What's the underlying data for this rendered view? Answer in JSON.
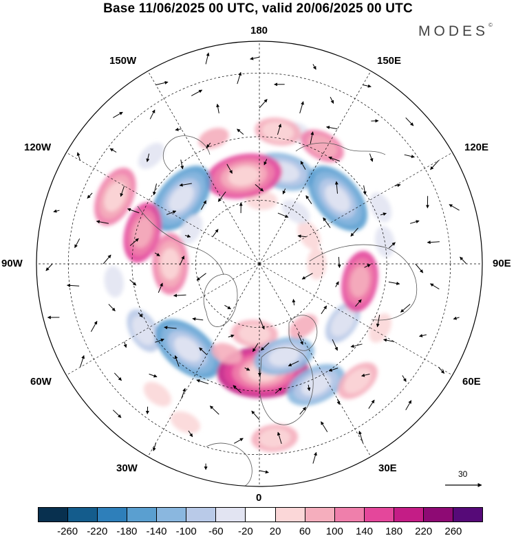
{
  "title": "Base 11/06/2025 00 UTC, valid 20/06/2025 00 UTC",
  "brand": {
    "name": "MODES",
    "mark": "©"
  },
  "longitude_labels": {
    "lon_180": "180",
    "lon_150w": "150W",
    "lon_150e": "150E",
    "lon_120w": "120W",
    "lon_120e": "120E",
    "lon_90w": "90W",
    "lon_90e": "90E",
    "lon_60w": "60W",
    "lon_60e": "60E",
    "lon_30w": "30W",
    "lon_30e": "30E",
    "lon_0": "0"
  },
  "wind_reference": {
    "value": "30"
  },
  "colorbar": {
    "colors": [
      "#08304f",
      "#145c8c",
      "#2e7fba",
      "#5a9fd0",
      "#8ab7df",
      "#b9cae8",
      "#e2e4f2",
      "#ffffff",
      "#fbd7d8",
      "#f5aebd",
      "#ef7fab",
      "#e4479b",
      "#c41d86",
      "#8e0a74",
      "#560a78"
    ],
    "tick_labels": [
      "-260",
      "-220",
      "-180",
      "-140",
      "-100",
      "-60",
      "-20",
      "20",
      "60",
      "100",
      "140",
      "180",
      "220",
      "260"
    ]
  },
  "anomalies": [
    {
      "lon": 165,
      "lat": 60,
      "value": -120
    },
    {
      "lon": 165,
      "lat": 47,
      "value": -60
    },
    {
      "lon": 152,
      "lat": 48,
      "value": 100
    },
    {
      "lon": 172,
      "lat": 48,
      "value": 80
    },
    {
      "lon": 178,
      "lat": 70,
      "value": 40
    },
    {
      "lon": 190,
      "lat": 62,
      "value": 160
    },
    {
      "lon": 200,
      "lat": 48,
      "value": 60
    },
    {
      "lon": 225,
      "lat": 42,
      "value": -40
    },
    {
      "lon": 230,
      "lat": 58,
      "value": -160
    },
    {
      "lon": 243,
      "lat": 66,
      "value": -60
    },
    {
      "lon": 245,
      "lat": 40,
      "value": 120
    },
    {
      "lon": 255,
      "lat": 52,
      "value": 140
    },
    {
      "lon": 270,
      "lat": 62,
      "value": 120
    },
    {
      "lon": 277,
      "lat": 44,
      "value": -40
    },
    {
      "lon": 300,
      "lat": 48,
      "value": -80
    },
    {
      "lon": 320,
      "lat": 55,
      "value": -160
    },
    {
      "lon": 335,
      "lat": 35,
      "value": 50
    },
    {
      "lon": 322,
      "lat": 38,
      "value": 40
    },
    {
      "lon": 2,
      "lat": 56,
      "value": 210
    },
    {
      "lon": 356,
      "lat": 68,
      "value": 90
    },
    {
      "lon": 15,
      "lat": 60,
      "value": -120
    },
    {
      "lon": 25,
      "lat": 48,
      "value": -140
    },
    {
      "lon": 35,
      "lat": 66,
      "value": 60
    },
    {
      "lon": 40,
      "lat": 42,
      "value": 80
    },
    {
      "lon": 55,
      "lat": 58,
      "value": -100
    },
    {
      "lon": 62,
      "lat": 47,
      "value": 40
    },
    {
      "lon": 80,
      "lat": 58,
      "value": 140
    },
    {
      "lon": 90,
      "lat": 72,
      "value": 50
    },
    {
      "lon": 100,
      "lat": 50,
      "value": -40
    },
    {
      "lon": 115,
      "lat": 48,
      "value": -60
    },
    {
      "lon": 130,
      "lat": 58,
      "value": -170
    },
    {
      "lon": 120,
      "lat": 72,
      "value": 40
    },
    {
      "lon": 145,
      "lat": 70,
      "value": -40
    },
    {
      "lon": 5,
      "lat": 35,
      "value": 70
    },
    {
      "lon": 340,
      "lat": 60,
      "value": 60
    }
  ],
  "wind_field": [
    {
      "lon": 0,
      "lat": 50,
      "u": 10,
      "v": 8
    },
    {
      "lon": 20,
      "lat": 55,
      "u": -8,
      "v": 6
    },
    {
      "lon": 60,
      "lat": 55,
      "u": 6,
      "v": -5
    },
    {
      "lon": 100,
      "lat": 55,
      "u": 12,
      "v": 2
    },
    {
      "lon": 140,
      "lat": 60,
      "u": 14,
      "v": -3
    },
    {
      "lon": 180,
      "lat": 55,
      "u": -6,
      "v": 8
    },
    {
      "lon": 220,
      "lat": 55,
      "u": 10,
      "v": -6
    },
    {
      "lon": 260,
      "lat": 55,
      "u": -9,
      "v": 5
    },
    {
      "lon": 300,
      "lat": 55,
      "u": 11,
      "v": 4
    },
    {
      "lon": 340,
      "lat": 55,
      "u": -7,
      "v": -6
    }
  ]
}
